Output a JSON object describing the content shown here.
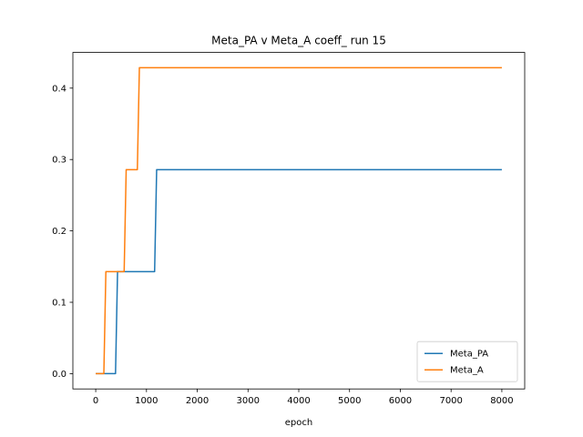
{
  "chart_data": {
    "type": "line",
    "title": "Meta_PA v Meta_A coeff_ run 15",
    "xlabel": "epoch",
    "ylabel": "",
    "xlim": [
      -450,
      8450
    ],
    "ylim": [
      -0.0214,
      0.45
    ],
    "xticks": [
      0,
      1000,
      2000,
      3000,
      4000,
      5000,
      6000,
      7000,
      8000
    ],
    "yticks": [
      0.0,
      0.1,
      0.2,
      0.3,
      0.4
    ],
    "xtick_labels": [
      "0",
      "1000",
      "2000",
      "3000",
      "4000",
      "5000",
      "6000",
      "7000",
      "8000"
    ],
    "ytick_labels": [
      "0.0",
      "0.1",
      "0.2",
      "0.3",
      "0.4"
    ],
    "grid": false,
    "legend_position": "lower-right",
    "series": [
      {
        "name": "Meta_PA",
        "color": "#1f77b4",
        "x": [
          0,
          390,
          430,
          1160,
          1200,
          8000
        ],
        "y": [
          0.0,
          0.0,
          0.1429,
          0.1429,
          0.2857,
          0.2857
        ]
      },
      {
        "name": "Meta_A",
        "color": "#ff7f0e",
        "x": [
          0,
          160,
          200,
          560,
          600,
          820,
          860,
          8000
        ],
        "y": [
          0.0,
          0.0,
          0.1429,
          0.1429,
          0.2857,
          0.2857,
          0.4286,
          0.4286
        ]
      }
    ]
  }
}
